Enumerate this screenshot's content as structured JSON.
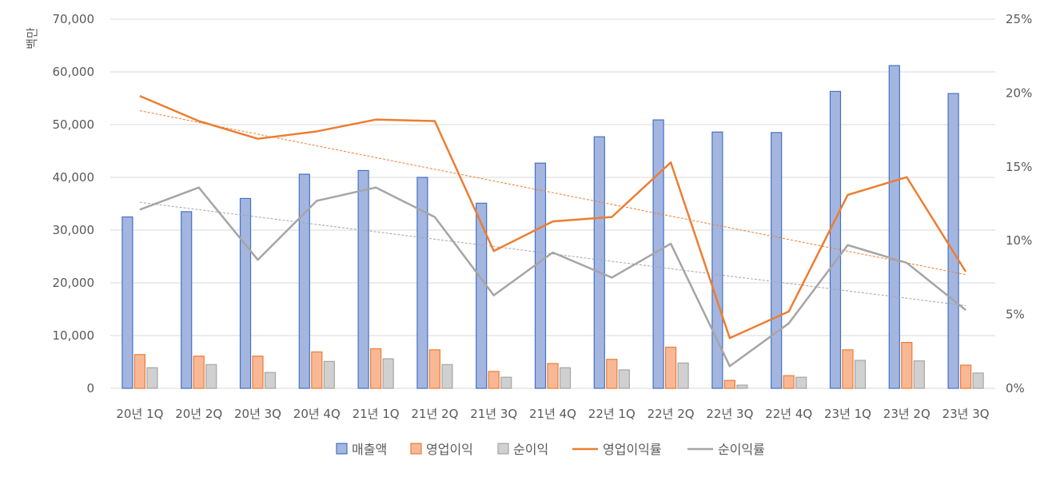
{
  "chart_data": {
    "type": "bar",
    "categories": [
      "20년 1Q",
      "20년 2Q",
      "20년 3Q",
      "20년 4Q",
      "21년 1Q",
      "21년 2Q",
      "21년 3Q",
      "21년 4Q",
      "22년 1Q",
      "22년 2Q",
      "22년 3Q",
      "22년 4Q",
      "23년 1Q",
      "23년 2Q",
      "23년 3Q"
    ],
    "ylabel": "백만",
    "ylim": [
      0,
      70000
    ],
    "yticks": [
      0,
      10000,
      20000,
      30000,
      40000,
      50000,
      60000,
      70000
    ],
    "ytick_labels": [
      "0",
      "10,000",
      "20,000",
      "30,000",
      "40,000",
      "50,000",
      "60,000",
      "70,000"
    ],
    "y2lim": [
      0,
      25
    ],
    "y2ticks": [
      0,
      5,
      10,
      15,
      20,
      25
    ],
    "y2tick_labels": [
      "0%",
      "5%",
      "10%",
      "15%",
      "20%",
      "25%"
    ],
    "grid": true,
    "legend_position": "bottom",
    "series": [
      {
        "name": "매출액",
        "kind": "bar",
        "axis": "left",
        "color": "#4472c4",
        "fill": "#a4b6e0",
        "values": [
          32500,
          33500,
          36000,
          40600,
          41300,
          40000,
          35100,
          42700,
          47700,
          50900,
          48600,
          48500,
          56300,
          61200,
          55900
        ]
      },
      {
        "name": "영업이익",
        "kind": "bar",
        "axis": "left",
        "color": "#ed7d31",
        "fill": "#f8b896",
        "values": [
          6400,
          6100,
          6100,
          6900,
          7500,
          7300,
          3200,
          4700,
          5500,
          7800,
          1500,
          2400,
          7300,
          8700,
          4400
        ]
      },
      {
        "name": "순이익",
        "kind": "bar",
        "axis": "left",
        "color": "#a5a5a5",
        "fill": "#d0d0d0",
        "values": [
          3900,
          4500,
          3000,
          5100,
          5600,
          4500,
          2100,
          3900,
          3500,
          4800,
          600,
          2100,
          5300,
          5200,
          2900
        ]
      },
      {
        "name": "영업이익률",
        "kind": "line",
        "axis": "right",
        "color": "#ed7d31",
        "values": [
          19.8,
          18.1,
          16.9,
          17.4,
          18.2,
          18.1,
          9.3,
          11.3,
          11.6,
          15.3,
          3.4,
          5.2,
          13.1,
          14.3,
          7.9
        ],
        "trendline": {
          "start": 18.8,
          "end": 7.7
        }
      },
      {
        "name": "순이익률",
        "kind": "line",
        "axis": "right",
        "color": "#a5a5a5",
        "values": [
          12.1,
          13.6,
          8.7,
          12.7,
          13.6,
          11.6,
          6.3,
          9.2,
          7.5,
          9.8,
          1.5,
          4.4,
          9.7,
          8.5,
          5.3
        ],
        "trendline": {
          "start": 12.6,
          "end": 5.6
        }
      }
    ]
  }
}
